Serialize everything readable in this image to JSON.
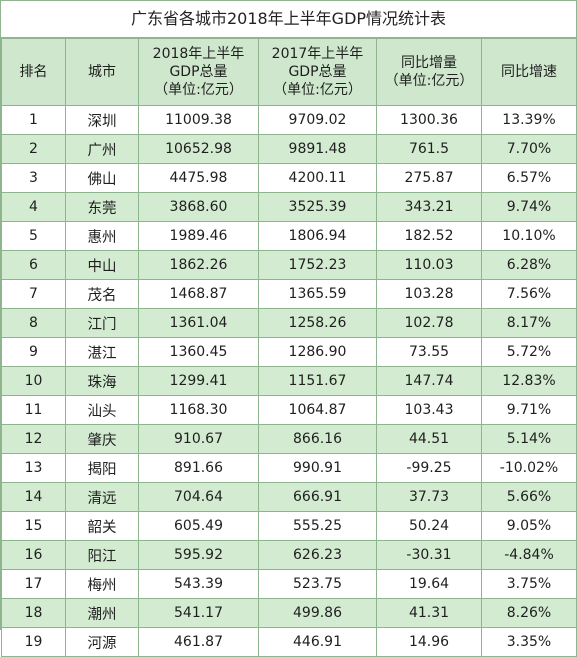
{
  "title": "广东省各城市2018年上半年GDP情况统计表",
  "headers": {
    "rank": "排名",
    "city": "城市",
    "gdp2018": [
      "2018年上半年",
      "GDP总量",
      "（单位:亿元）"
    ],
    "gdp2017": [
      "2017年上半年",
      "GDP总量",
      "（单位:亿元）"
    ],
    "increase": [
      "同比增量",
      "（单位:亿元）"
    ],
    "growth": "同比增速"
  },
  "rows": [
    {
      "rank": "1",
      "city": "深圳",
      "gdp2018": "11009.38",
      "gdp2017": "9709.02",
      "increase": "1300.36",
      "growth": "13.39%"
    },
    {
      "rank": "2",
      "city": "广州",
      "gdp2018": "10652.98",
      "gdp2017": "9891.48",
      "increase": "761.5",
      "growth": "7.70%"
    },
    {
      "rank": "3",
      "city": "佛山",
      "gdp2018": "4475.98",
      "gdp2017": "4200.11",
      "increase": "275.87",
      "growth": "6.57%"
    },
    {
      "rank": "4",
      "city": "东莞",
      "gdp2018": "3868.60",
      "gdp2017": "3525.39",
      "increase": "343.21",
      "growth": "9.74%"
    },
    {
      "rank": "5",
      "city": "惠州",
      "gdp2018": "1989.46",
      "gdp2017": "1806.94",
      "increase": "182.52",
      "growth": "10.10%"
    },
    {
      "rank": "6",
      "city": "中山",
      "gdp2018": "1862.26",
      "gdp2017": "1752.23",
      "increase": "110.03",
      "growth": "6.28%"
    },
    {
      "rank": "7",
      "city": "茂名",
      "gdp2018": "1468.87",
      "gdp2017": "1365.59",
      "increase": "103.28",
      "growth": "7.56%"
    },
    {
      "rank": "8",
      "city": "江门",
      "gdp2018": "1361.04",
      "gdp2017": "1258.26",
      "increase": "102.78",
      "growth": "8.17%"
    },
    {
      "rank": "9",
      "city": "湛江",
      "gdp2018": "1360.45",
      "gdp2017": "1286.90",
      "increase": "73.55",
      "growth": "5.72%"
    },
    {
      "rank": "10",
      "city": "珠海",
      "gdp2018": "1299.41",
      "gdp2017": "1151.67",
      "increase": "147.74",
      "growth": "12.83%"
    },
    {
      "rank": "11",
      "city": "汕头",
      "gdp2018": "1168.30",
      "gdp2017": "1064.87",
      "increase": "103.43",
      "growth": "9.71%"
    },
    {
      "rank": "12",
      "city": "肇庆",
      "gdp2018": "910.67",
      "gdp2017": "866.16",
      "increase": "44.51",
      "growth": "5.14%"
    },
    {
      "rank": "13",
      "city": "揭阳",
      "gdp2018": "891.66",
      "gdp2017": "990.91",
      "increase": "-99.25",
      "growth": "-10.02%"
    },
    {
      "rank": "14",
      "city": "清远",
      "gdp2018": "704.64",
      "gdp2017": "666.91",
      "increase": "37.73",
      "growth": "5.66%"
    },
    {
      "rank": "15",
      "city": "韶关",
      "gdp2018": "605.49",
      "gdp2017": "555.25",
      "increase": "50.24",
      "growth": "9.05%"
    },
    {
      "rank": "16",
      "city": "阳江",
      "gdp2018": "595.92",
      "gdp2017": "626.23",
      "increase": "-30.31",
      "growth": "-4.84%"
    },
    {
      "rank": "17",
      "city": "梅州",
      "gdp2018": "543.39",
      "gdp2017": "523.75",
      "increase": "19.64",
      "growth": "3.75%"
    },
    {
      "rank": "18",
      "city": "潮州",
      "gdp2018": "541.17",
      "gdp2017": "499.86",
      "increase": "41.31",
      "growth": "8.26%"
    },
    {
      "rank": "19",
      "city": "河源",
      "gdp2018": "461.87",
      "gdp2017": "446.91",
      "increase": "14.96",
      "growth": "3.35%"
    }
  ]
}
